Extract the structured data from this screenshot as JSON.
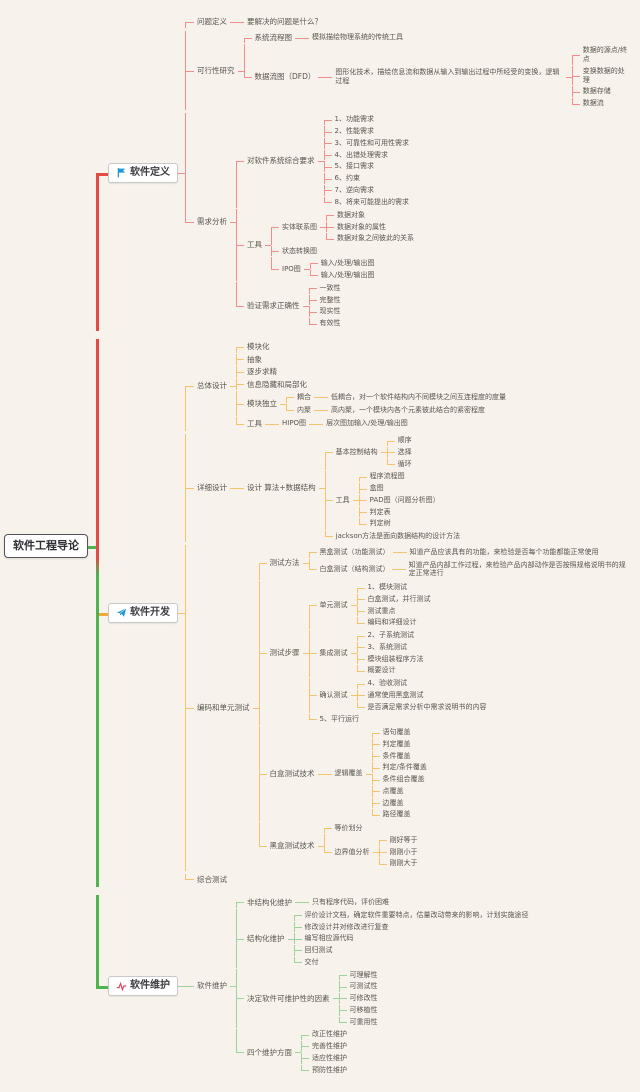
{
  "colors": {
    "bg": "#f7f3ec",
    "text": "#59544c",
    "box_border": "#c9c9c9",
    "root_border": "#55545a",
    "red": "#e14b44",
    "red_light": "#ef8e8b",
    "orange": "#f2a93c",
    "orange_light": "#f4c36e",
    "green": "#4eb44e",
    "green_light": "#9ad49a",
    "icon_blue": "#1b98d5",
    "icon_red": "#e14b6b"
  },
  "root": {
    "t": "软件工程导论",
    "name": "root-node",
    "color": "green",
    "line": "green_light",
    "c": [
      {
        "t": "软件定义",
        "name": "branch-software-definition",
        "icon": "flag-icon",
        "color": "red",
        "line": "red_light",
        "c": [
          {
            "t": "问题定义",
            "c": [
              {
                "t": "要解决的问题是什么？"
              }
            ]
          },
          {
            "t": "可行性研究",
            "c": [
              {
                "t": "系统流程图",
                "c": [
                  {
                    "t": "模拟描绘物理系统的传统工具"
                  }
                ]
              },
              {
                "t": "数据流图（DFD）",
                "c": [
                  {
                    "t": "图形化技术，描绘信息流和数据从输入到输出过程中所经受的变换，逻辑过程",
                    "c": [
                      {
                        "t": "数据的源点/终点"
                      },
                      {
                        "t": "变换数据的处理"
                      },
                      {
                        "t": "数据存储"
                      },
                      {
                        "t": "数据流"
                      }
                    ]
                  }
                ]
              }
            ]
          },
          {
            "t": "需求分析",
            "c": [
              {
                "t": "对软件系统综合要求",
                "c": [
                  {
                    "t": "1、功能需求"
                  },
                  {
                    "t": "2、性能需求"
                  },
                  {
                    "t": "3、可靠性和可用性需求"
                  },
                  {
                    "t": "4、出错处理需求"
                  },
                  {
                    "t": "5、接口需求"
                  },
                  {
                    "t": "6、约束"
                  },
                  {
                    "t": "7、逆向需求"
                  },
                  {
                    "t": "8、将来可能提出的需求"
                  }
                ]
              },
              {
                "t": "工具",
                "c": [
                  {
                    "t": "实体联系图",
                    "c": [
                      {
                        "t": "数据对象"
                      },
                      {
                        "t": "数据对象的属性"
                      },
                      {
                        "t": "数据对象之间彼此的关系"
                      }
                    ]
                  },
                  {
                    "t": "状态转换图"
                  },
                  {
                    "t": "IPO图",
                    "c": [
                      {
                        "t": "输入/处理/输出图"
                      },
                      {
                        "t": "输入/处理/输出图"
                      }
                    ]
                  }
                ]
              },
              {
                "t": "验证需求正确性",
                "c": [
                  {
                    "t": "一致性"
                  },
                  {
                    "t": "完整性"
                  },
                  {
                    "t": "现实性"
                  },
                  {
                    "t": "有效性"
                  }
                ]
              }
            ]
          }
        ]
      },
      {
        "t": "软件开发",
        "name": "branch-software-development",
        "icon": "paper-plane-icon",
        "color": "orange",
        "line": "orange_light",
        "c": [
          {
            "t": "总体设计",
            "c": [
              {
                "t": "模块化"
              },
              {
                "t": "抽象"
              },
              {
                "t": "逐步求精"
              },
              {
                "t": "信息隐藏和局部化"
              },
              {
                "t": "模块独立",
                "c": [
                  {
                    "t": "耦合",
                    "c": [
                      {
                        "t": "低耦合，对一个软件结构内不同模块之间互连程度的度量"
                      }
                    ]
                  },
                  {
                    "t": "内聚",
                    "c": [
                      {
                        "t": "高内聚，一个模块内各个元素彼此结合的紧密程度"
                      }
                    ]
                  }
                ]
              },
              {
                "t": "工具",
                "c": [
                  {
                    "t": "HIPO图",
                    "c": [
                      {
                        "t": "层次图加输入/处理/输出图"
                      }
                    ]
                  }
                ]
              }
            ]
          },
          {
            "t": "详细设计",
            "c": [
              {
                "t": "设计 算法+数据结构",
                "c": [
                  {
                    "t": "基本控制结构",
                    "c": [
                      {
                        "t": "顺序"
                      },
                      {
                        "t": "选择"
                      },
                      {
                        "t": "循环"
                      }
                    ]
                  },
                  {
                    "t": "工具",
                    "c": [
                      {
                        "t": "程序流程图"
                      },
                      {
                        "t": "盒图"
                      },
                      {
                        "t": "PAD图（问题分析图）"
                      },
                      {
                        "t": "判定表"
                      },
                      {
                        "t": "判定树"
                      }
                    ]
                  },
                  {
                    "t": "jackson方法是面向数据结构的设计方法"
                  }
                ]
              }
            ]
          },
          {
            "t": "编码和单元测试",
            "c": [
              {
                "t": "测试方法",
                "c": [
                  {
                    "t": "黑盒测试（功能测试）",
                    "c": [
                      {
                        "t": "知道产品应该具有的功能，来检验是否每个功能都能正常使用"
                      }
                    ]
                  },
                  {
                    "t": "白盒测试（结构测试）",
                    "c": [
                      {
                        "t": "知道产品内部工作过程，来检验产品内部动作是否按照规格说明书的规定正常进行"
                      }
                    ]
                  }
                ]
              },
              {
                "t": "测试步骤",
                "c": [
                  {
                    "t": "单元测试",
                    "c": [
                      {
                        "t": "1、模块测试"
                      },
                      {
                        "t": "白盒测试，并行测试"
                      },
                      {
                        "t": "测试重点"
                      },
                      {
                        "t": "编码和详细设计"
                      }
                    ]
                  },
                  {
                    "t": "集成测试",
                    "c": [
                      {
                        "t": "2、子系统测试"
                      },
                      {
                        "t": "3、系统测试"
                      },
                      {
                        "t": "模块组装程序方法"
                      },
                      {
                        "t": "概要设计"
                      }
                    ]
                  },
                  {
                    "t": "确认测试",
                    "c": [
                      {
                        "t": "4、验收测试"
                      },
                      {
                        "t": "通常使用黑盒测试"
                      },
                      {
                        "t": "是否满足需求分析中需求说明书的内容"
                      }
                    ]
                  },
                  {
                    "t": "5、平行运行"
                  }
                ]
              },
              {
                "t": "白盒测试技术",
                "c": [
                  {
                    "t": "逻辑覆盖",
                    "c": [
                      {
                        "t": "语句覆盖"
                      },
                      {
                        "t": "判定覆盖"
                      },
                      {
                        "t": "条件覆盖"
                      },
                      {
                        "t": "判定/条件覆盖"
                      },
                      {
                        "t": "条件组合覆盖"
                      },
                      {
                        "t": "点覆盖"
                      },
                      {
                        "t": "边覆盖"
                      },
                      {
                        "t": "路径覆盖"
                      }
                    ]
                  }
                ]
              },
              {
                "t": "黑盒测试技术",
                "c": [
                  {
                    "t": "等价划分"
                  },
                  {
                    "t": "边界值分析",
                    "c": [
                      {
                        "t": "刚好等于"
                      },
                      {
                        "t": "刚刚小于"
                      },
                      {
                        "t": "刚刚大于"
                      }
                    ]
                  }
                ]
              }
            ]
          },
          {
            "t": "综合测试"
          }
        ]
      },
      {
        "t": "软件维护",
        "name": "branch-software-maintenance",
        "icon": "activity-icon",
        "color": "green",
        "line": "green_light",
        "c": [
          {
            "t": "软件维护",
            "c": [
              {
                "t": "非结构化维护",
                "c": [
                  {
                    "t": "只有程序代码，评价困难"
                  }
                ]
              },
              {
                "t": "结构化维护",
                "c": [
                  {
                    "t": "评价设计文档，确定软件重要特点，估量改动带来的影响，计划实施途径"
                  },
                  {
                    "t": "修改设计并对修改进行复查"
                  },
                  {
                    "t": "编写相应源代码"
                  },
                  {
                    "t": "回归测试"
                  },
                  {
                    "t": "交付"
                  }
                ]
              },
              {
                "t": "决定软件可维护性的因素",
                "c": [
                  {
                    "t": "可理解性"
                  },
                  {
                    "t": "可测试性"
                  },
                  {
                    "t": "可修改性"
                  },
                  {
                    "t": "可移植性"
                  },
                  {
                    "t": "可重用性"
                  }
                ]
              },
              {
                "t": "四个维护方面",
                "c": [
                  {
                    "t": "改正性维护"
                  },
                  {
                    "t": "完善性维护"
                  },
                  {
                    "t": "适应性维护"
                  },
                  {
                    "t": "预防性维护"
                  }
                ]
              }
            ]
          }
        ]
      }
    ]
  }
}
